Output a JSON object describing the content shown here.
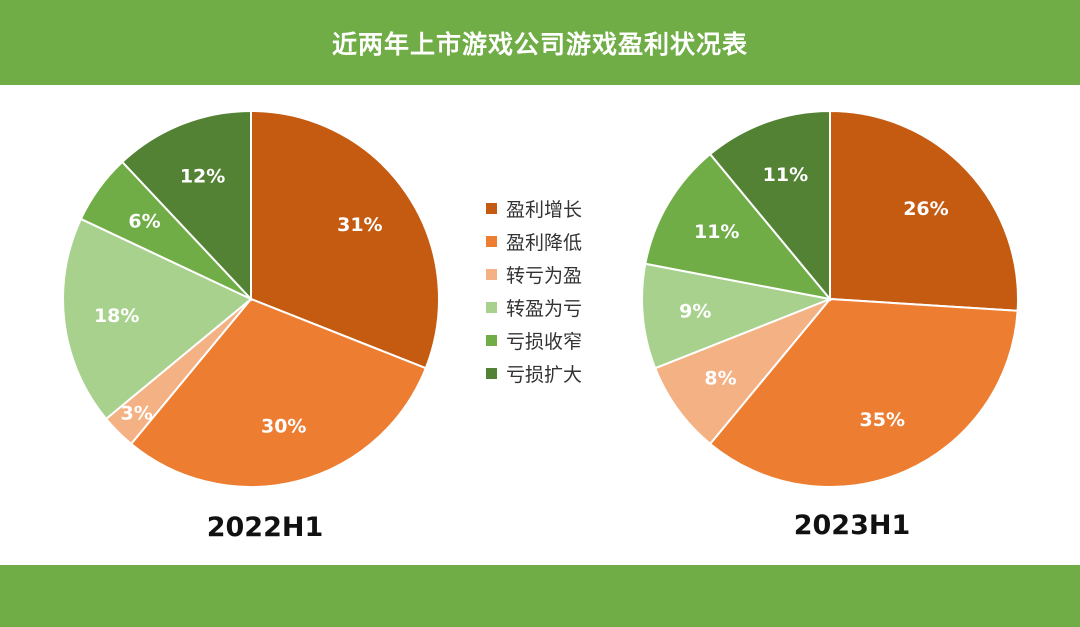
{
  "header": {
    "title": "近两年上市游戏公司游戏盈利状况表"
  },
  "colors": {
    "bar": "#70ad47",
    "profit_growth": "#c55a11",
    "profit_decline": "#ed7d31",
    "loss_to_profit": "#f4b183",
    "profit_to_loss": "#a9d18e",
    "loss_narrow": "#70ad47",
    "loss_widen": "#548235"
  },
  "legend": [
    "盈利增长",
    "盈利降低",
    "转亏为盈",
    "转盈为亏",
    "亏损收窄",
    "亏损扩大"
  ],
  "chart_data": [
    {
      "type": "pie",
      "title": "2022H1",
      "categories": [
        "盈利增长",
        "盈利降低",
        "转亏为盈",
        "转盈为亏",
        "亏损收窄",
        "亏损扩大"
      ],
      "values": [
        31,
        30,
        3,
        18,
        6,
        12
      ],
      "labels": [
        "31%",
        "30%",
        "3%",
        "18%",
        "6%",
        "12%"
      ]
    },
    {
      "type": "pie",
      "title": "2023H1",
      "categories": [
        "盈利增长",
        "盈利降低",
        "转亏为盈",
        "转盈为亏",
        "亏损收窄",
        "亏损扩大"
      ],
      "values": [
        26,
        35,
        8,
        9,
        11,
        11
      ],
      "labels": [
        "26%",
        "35%",
        "8%",
        "9%",
        "11%",
        "11%"
      ]
    }
  ]
}
